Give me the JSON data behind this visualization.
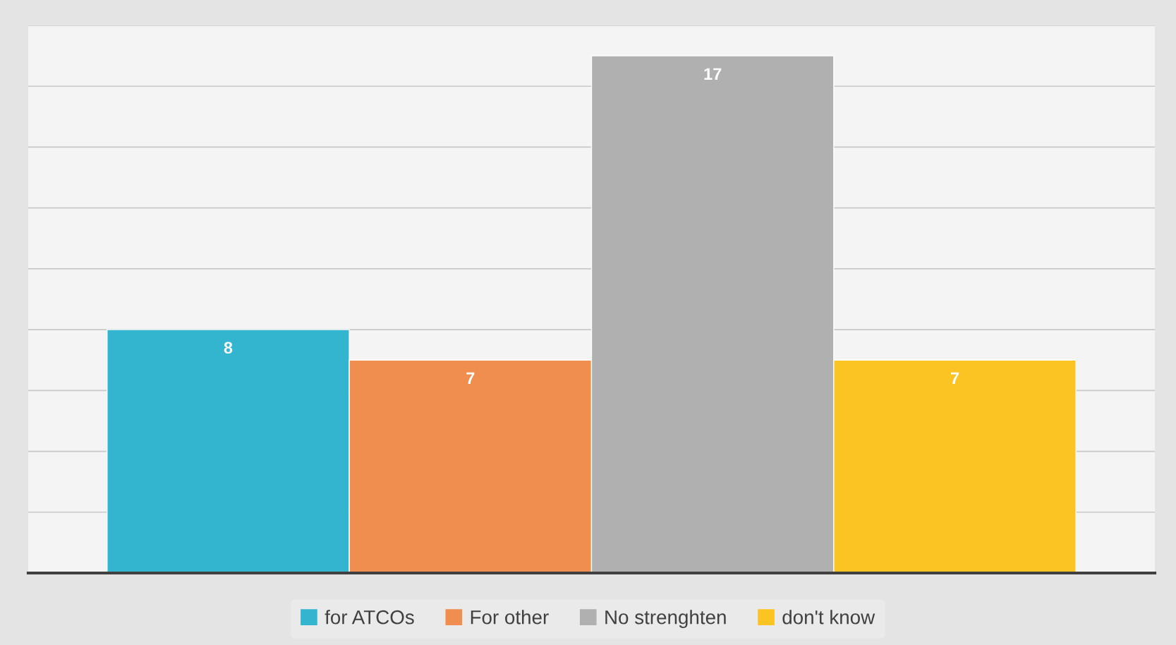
{
  "chart_data": {
    "type": "bar",
    "categories": [
      null
    ],
    "series": [
      {
        "name": "for ATCOs",
        "color": "#33b5cf",
        "values": [
          8
        ]
      },
      {
        "name": "For other",
        "color": "#ef8e4f",
        "values": [
          7
        ]
      },
      {
        "name": "No strenghten",
        "color": "#b0b0b0",
        "values": [
          17
        ]
      },
      {
        "name": "don't know",
        "color": "#fbc423",
        "values": [
          7
        ]
      }
    ],
    "ylim": [
      0,
      18
    ],
    "yticks": [
      {
        "value": 0,
        "label": null
      },
      {
        "value": 2,
        "label": null
      },
      {
        "value": 4,
        "label": null
      },
      {
        "value": 6,
        "label": null
      },
      {
        "value": 8,
        "label": null
      },
      {
        "value": 10,
        "label": null
      },
      {
        "value": 12,
        "label": null
      },
      {
        "value": 14,
        "label": null
      },
      {
        "value": 16,
        "label": null
      },
      {
        "value": 18,
        "label": null
      }
    ],
    "grid": "y",
    "data_labels": true,
    "legend": "bottom"
  }
}
